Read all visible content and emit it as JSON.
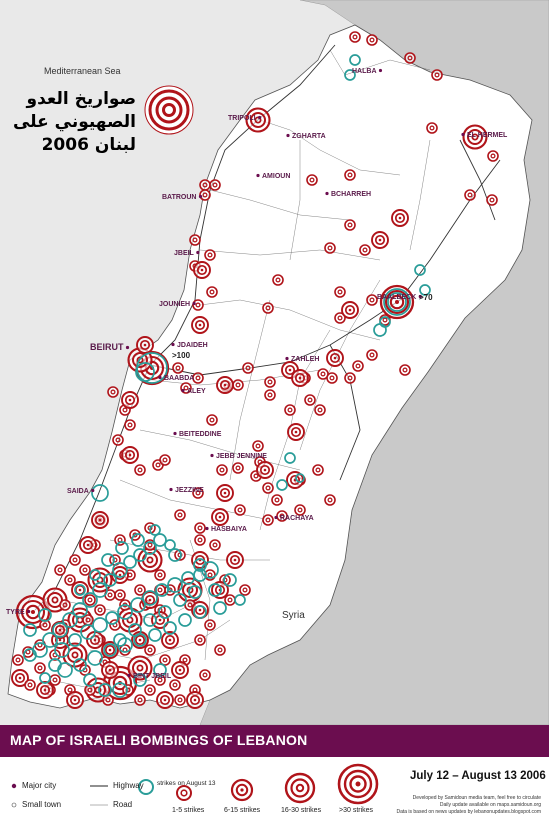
{
  "title": "MAP OF ISRAELI BOMBINGS OF LEBANON",
  "arabic_title_lines": [
    "صواريخ العدو",
    "الصهيوني على",
    "لبنان 2006"
  ],
  "labels": {
    "sea": "Mediterranean Sea",
    "neighbor": "Syria"
  },
  "major_cities": [
    {
      "name": "HALBA"
    },
    {
      "name": "TRIPOLI"
    },
    {
      "name": "EL HERMEL"
    },
    {
      "name": "ZGHARTA"
    },
    {
      "name": "AMIOUN"
    },
    {
      "name": "BCHARREH"
    },
    {
      "name": "BATROUN"
    },
    {
      "name": "JBEIL"
    },
    {
      "name": "BAALBECK"
    },
    {
      "name": "JOUNIEH"
    },
    {
      "name": "JDAIDEH"
    },
    {
      "name": "BEIRUT"
    },
    {
      "name": "BAABDA"
    },
    {
      "name": "ZAHLEH"
    },
    {
      "name": "ALEY"
    },
    {
      "name": "BEITEDDINE"
    },
    {
      "name": "JEBB JENNINE"
    },
    {
      "name": "SAIDA"
    },
    {
      "name": "JEZZINE"
    },
    {
      "name": "RACHAYA"
    },
    {
      "name": "HASBAIYA"
    },
    {
      "name": "TYRE"
    },
    {
      "name": "BINT JBEIL"
    }
  ],
  "counts": [
    {
      "text": ">70"
    },
    {
      "text": ">100"
    }
  ],
  "legend": {
    "major_city": "Major city",
    "small_town": "Small town",
    "highway": "Highway",
    "road": "Road",
    "aug13": "strikes on August 13",
    "strike_classes": [
      "1-5 strikes",
      "6-15 strikes",
      "16-30 strikes",
      ">30 strikes"
    ],
    "dates": "July 12 – August 13 2006",
    "credits": [
      "Developed by Samidoun media team, feel free to circulate",
      "Daily update available on maps.samidoun.org",
      "Data is based on news updates by lebanonupdates.blogspot.com"
    ]
  },
  "colors": {
    "title_bar": "#6b0d4f",
    "strike_red": "#b0141a",
    "aug13_teal": "#2a9d99",
    "land": "#ffffff",
    "neighbor_land": "#c9c9c9",
    "sea": "#e9e9e9"
  }
}
